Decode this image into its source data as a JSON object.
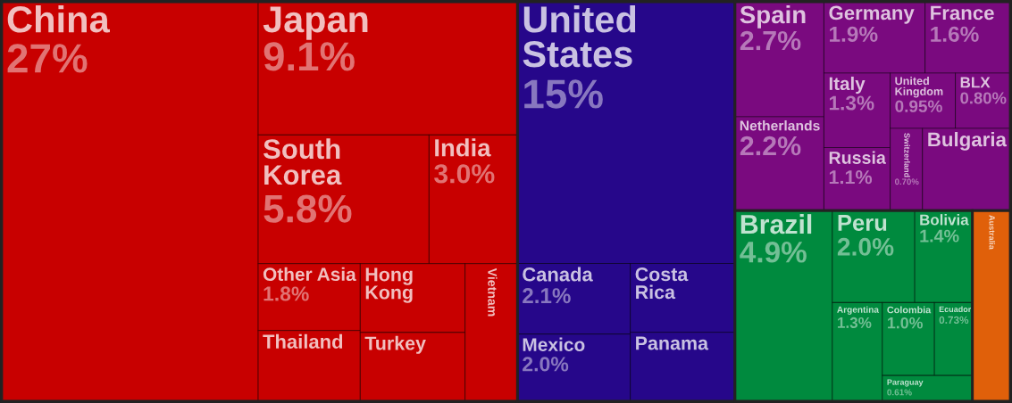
{
  "chart_data": {
    "type": "other",
    "data_labels": true,
    "categories": [
      "China",
      "Japan",
      "South Korea",
      "India",
      "Other Asia",
      "Thailand",
      "Hong Kong",
      "Turkey",
      "Vietnam",
      "United States",
      "Canada",
      "Mexico",
      "Costa Rica",
      "Panama",
      "Spain",
      "Netherlands",
      "Germany",
      "France",
      "Italy",
      "Russia",
      "United Kingdom",
      "BLX",
      "Switzerland",
      "Bulgaria",
      "Brazil",
      "Peru",
      "Bolivia",
      "Argentina",
      "Colombia",
      "Ecuador",
      "Paraguay",
      "Australia"
    ],
    "values": [
      27,
      9.1,
      5.8,
      3.0,
      1.8,
      null,
      null,
      null,
      null,
      15,
      2.1,
      2.0,
      null,
      null,
      2.7,
      2.2,
      1.9,
      1.6,
      1.3,
      1.1,
      0.95,
      0.8,
      0.7,
      null,
      4.9,
      2.0,
      1.4,
      1.3,
      1.0,
      0.73,
      0.61,
      null
    ],
    "value_labels": [
      "27%",
      "9.1%",
      "5.8%",
      "3.0%",
      "1.8%",
      null,
      null,
      null,
      null,
      "15%",
      "2.1%",
      "2.0%",
      null,
      null,
      "2.7%",
      "2.2%",
      "1.9%",
      "1.6%",
      "1.3%",
      "1.1%",
      "0.95%",
      "0.80%",
      "0.70%",
      null,
      "4.9%",
      "2.0%",
      "1.4%",
      "1.3%",
      "1.0%",
      "0.73%",
      "0.61%",
      null
    ],
    "colors": [
      "#c80000",
      "#c80000",
      "#c80000",
      "#c80000",
      "#c80000",
      "#c80000",
      "#c80000",
      "#c80000",
      "#c80000",
      "#26078a",
      "#26078a",
      "#26078a",
      "#26078a",
      "#26078a",
      "#7a0a7f",
      "#7a0a7f",
      "#7a0a7f",
      "#7a0a7f",
      "#7a0a7f",
      "#7a0a7f",
      "#7a0a7f",
      "#7a0a7f",
      "#7a0a7f",
      "#7a0a7f",
      "#008a3e",
      "#008a3e",
      "#008a3e",
      "#008a3e",
      "#008a3e",
      "#008a3e",
      "#008a3e",
      "#e0600a"
    ]
  }
}
